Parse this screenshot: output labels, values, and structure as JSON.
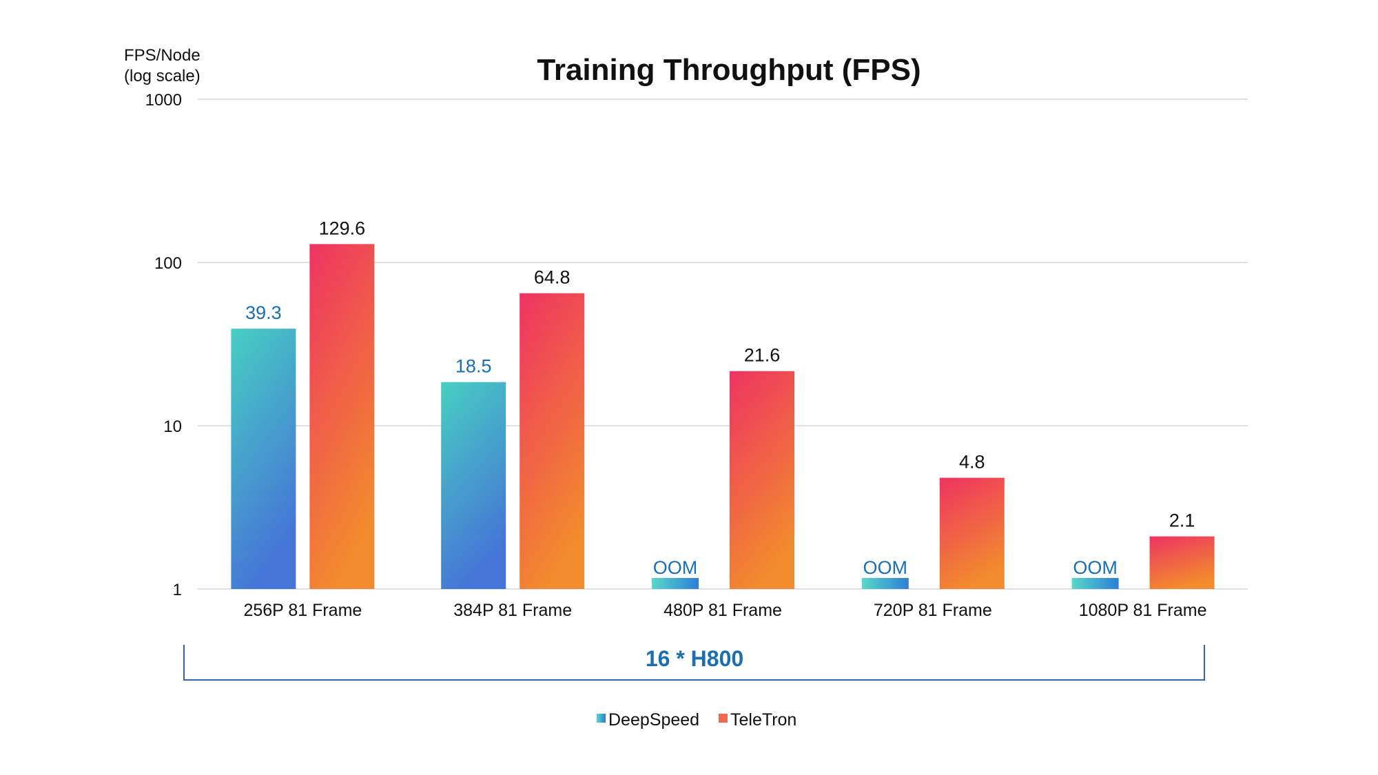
{
  "chart_data": {
    "type": "bar",
    "title": "Training Throughput (FPS)",
    "ylabel_line1": "FPS/Node",
    "ylabel_line2": "(log scale)",
    "yscale": "log",
    "ylim": [
      1,
      1000
    ],
    "yticks": [
      1,
      10,
      100,
      1000
    ],
    "ytick_labels": [
      "1",
      "10",
      "100",
      "1000"
    ],
    "grid": true,
    "categories": [
      "256P 81 Frame",
      "384P 81 Frame",
      "480P 81 Frame",
      "720P 81 Frame",
      "1080P 81 Frame"
    ],
    "series": [
      {
        "name": "DeepSpeed",
        "values": [
          39.3,
          18.5,
          null,
          null,
          null
        ],
        "labels": [
          "39.3",
          "18.5",
          "OOM",
          "OOM",
          "OOM"
        ],
        "color": "#2a8fd6"
      },
      {
        "name": "TeleTron",
        "values": [
          129.6,
          64.8,
          21.6,
          4.8,
          2.1
        ],
        "labels": [
          "129.6",
          "64.8",
          "21.6",
          "4.8",
          "2.1"
        ],
        "color": "#ee6a50"
      }
    ],
    "group_annotation": "16 * H800",
    "legend_position": "bottom-center",
    "colors": {
      "deepspeed_top": "#47cfc2",
      "deepspeed_bottom": "#4575d6",
      "teletron_top": "#ee3362",
      "teletron_bottom": "#f28a2e",
      "deepspeed_label": "#1a6fb3",
      "teletron_label": "#111111",
      "annotation": "#1a6fb3",
      "gridline": "#d3d7e6",
      "bracket": "#3a5fa8"
    }
  }
}
